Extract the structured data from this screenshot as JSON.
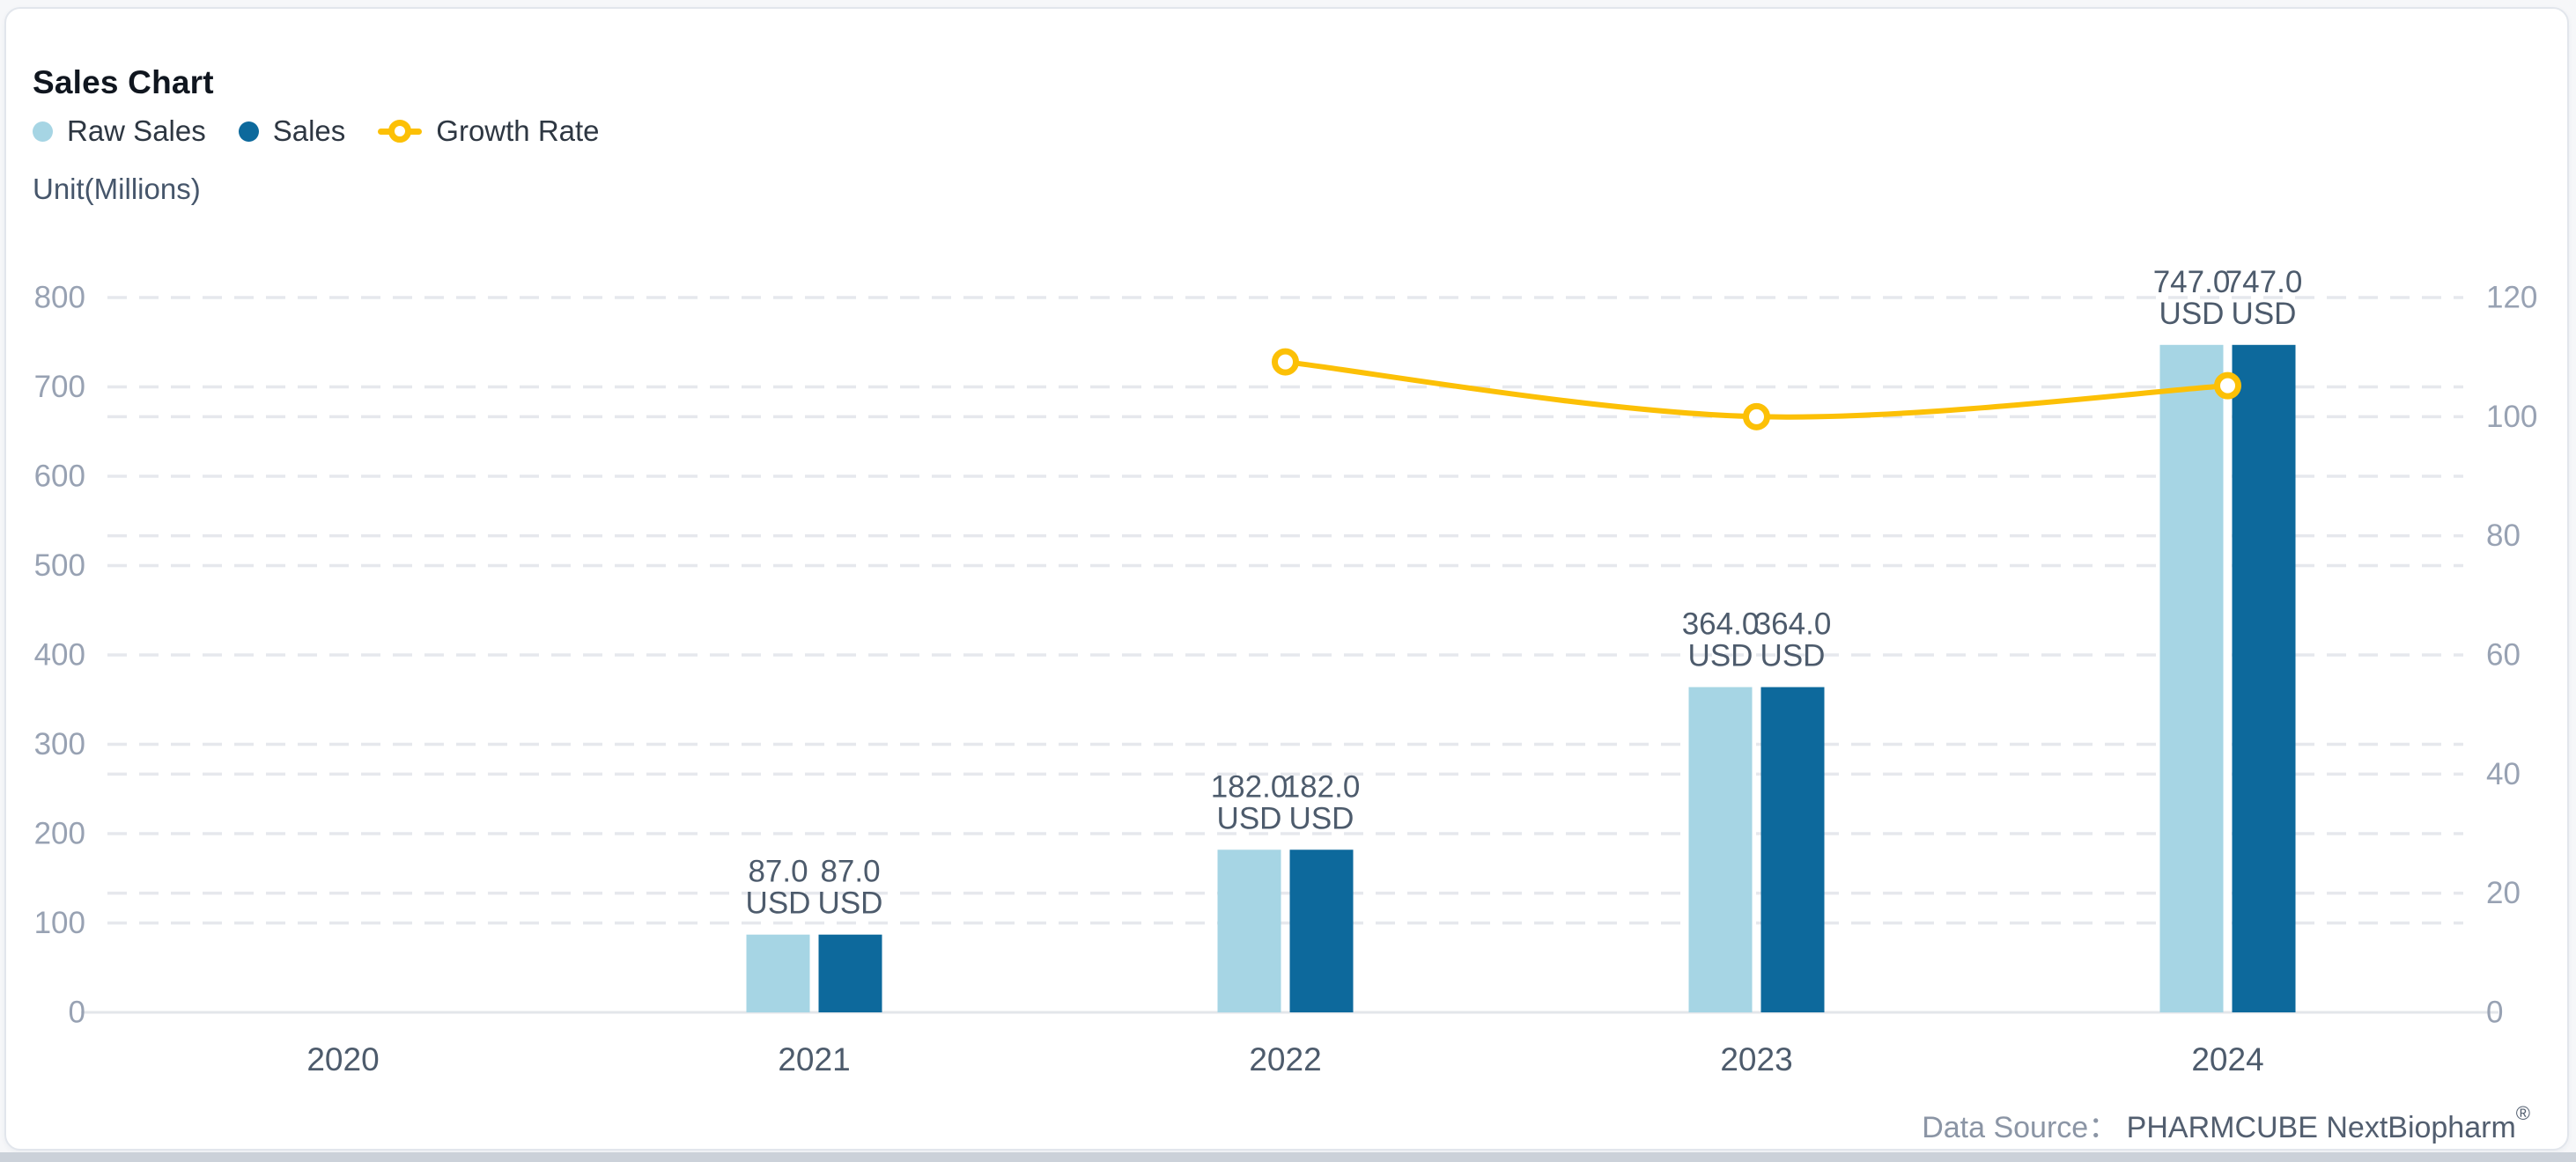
{
  "header": {
    "title": "Sales Chart"
  },
  "legend": {
    "items": [
      {
        "label": "Raw Sales",
        "color": "#a6d5e4",
        "marker": "circle"
      },
      {
        "label": "Sales",
        "color": "#0d699c",
        "marker": "circle"
      },
      {
        "label": "Growth Rate",
        "color": "#fcc006",
        "marker": "line"
      }
    ]
  },
  "unit_label": "Unit(Millions)",
  "chart_data": {
    "type": "bar",
    "subtype": "grouped-bars-with-line",
    "title": "Sales Chart",
    "categories": [
      "2020",
      "2021",
      "2022",
      "2023",
      "2024"
    ],
    "series": [
      {
        "name": "Raw Sales",
        "type": "bar",
        "axis": "left",
        "color": "#a6d5e4",
        "unit": "USD",
        "values": [
          null,
          87.0,
          182.0,
          364.0,
          747.0
        ]
      },
      {
        "name": "Sales",
        "type": "bar",
        "axis": "left",
        "color": "#0d699c",
        "unit": "USD",
        "values": [
          null,
          87.0,
          182.0,
          364.0,
          747.0
        ]
      },
      {
        "name": "Growth Rate",
        "type": "line",
        "axis": "right",
        "color": "#fcc006",
        "values": [
          null,
          null,
          109.2,
          100.0,
          105.2
        ]
      }
    ],
    "left_axis": {
      "min": 0,
      "max": 800,
      "step": 100,
      "ticks": [
        "0",
        "100",
        "200",
        "300",
        "400",
        "500",
        "600",
        "700",
        "800"
      ]
    },
    "right_axis": {
      "min": 0,
      "max": 120,
      "step": 20,
      "ticks": [
        "0",
        "20",
        "40",
        "60",
        "80",
        "100",
        "120"
      ]
    },
    "grid": "dashed",
    "legend_position": "top-left",
    "colors": {
      "gridline": "#e6e8ed",
      "baseline": "#e3e6ea",
      "y_tick_text": "#98a2b3",
      "x_tick_text": "#4d5b6c",
      "bar_label_text": "#4d5b6c"
    }
  },
  "footer": {
    "data_source_label": "Data Source：",
    "source_name": "PHARMCUBE NextBiopharm",
    "reg_mark": "®"
  }
}
